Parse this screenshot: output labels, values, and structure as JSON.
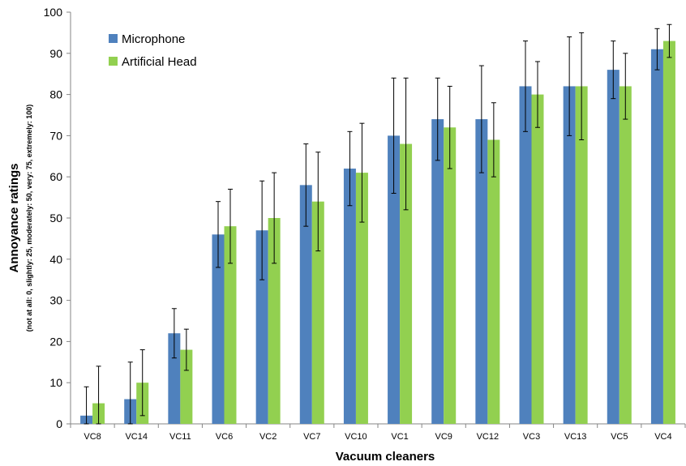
{
  "chart_data": {
    "type": "bar",
    "xlabel": "Vacuum cleaners",
    "ylabel": "Annoyance ratings",
    "ylabel_sub": "(not at all: 0, slightly: 25, moderately: 50, very: 75, extremely: 100)",
    "ylim": [
      0,
      100
    ],
    "yticks": [
      0,
      10,
      20,
      30,
      40,
      50,
      60,
      70,
      80,
      90,
      100
    ],
    "grid": false,
    "legend_position": "top-left",
    "categories": [
      "VC8",
      "VC14",
      "VC11",
      "VC6",
      "VC2",
      "VC7",
      "VC10",
      "VC1",
      "VC9",
      "VC12",
      "VC3",
      "VC13",
      "VC5",
      "VC4"
    ],
    "series": [
      {
        "name": "Microphone",
        "color": "#4f81bd",
        "values": [
          2,
          6,
          22,
          46,
          47,
          58,
          62,
          70,
          74,
          74,
          82,
          82,
          86,
          91
        ],
        "error_low": [
          0,
          0,
          16,
          38,
          35,
          48,
          53,
          56,
          64,
          61,
          71,
          70,
          79,
          86
        ],
        "error_high": [
          9,
          15,
          28,
          54,
          59,
          68,
          71,
          84,
          84,
          87,
          93,
          94,
          93,
          96
        ]
      },
      {
        "name": "Artificial Head",
        "color": "#92d050",
        "values": [
          5,
          10,
          18,
          48,
          50,
          54,
          61,
          68,
          72,
          69,
          80,
          82,
          82,
          93
        ],
        "error_low": [
          0,
          2,
          13,
          39,
          39,
          42,
          49,
          52,
          62,
          60,
          72,
          69,
          74,
          89
        ],
        "error_high": [
          14,
          18,
          23,
          57,
          61,
          66,
          73,
          84,
          82,
          78,
          88,
          95,
          90,
          97
        ]
      }
    ]
  }
}
